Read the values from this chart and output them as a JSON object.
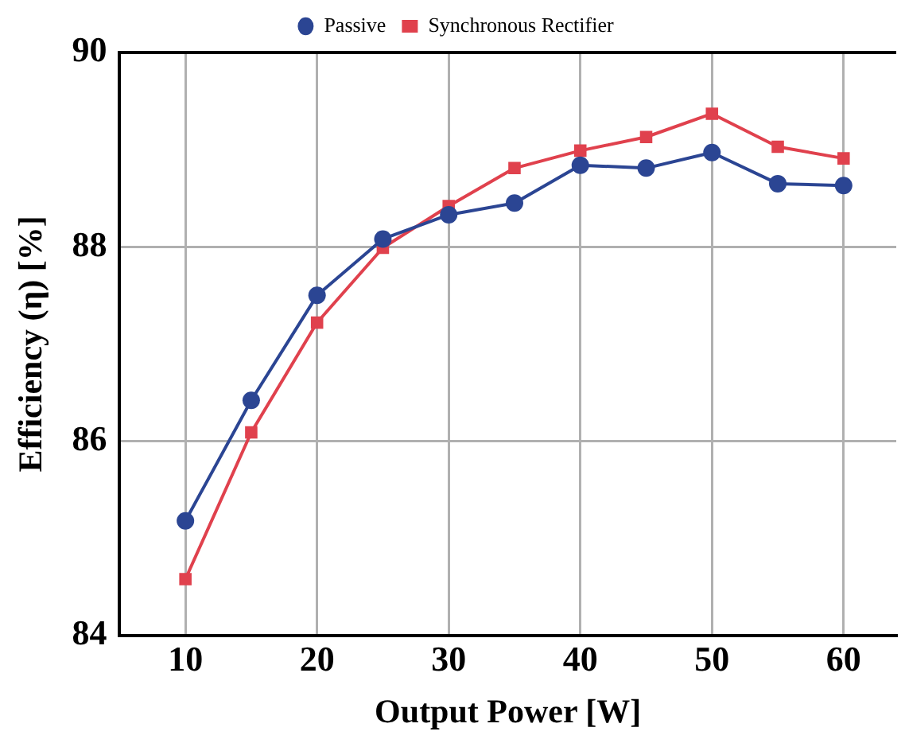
{
  "chart_data": {
    "type": "line",
    "xlabel": "Output Power [W]",
    "ylabel": "Efficiency (η) [%]",
    "xlim": [
      5,
      64
    ],
    "xticks": [
      10,
      20,
      30,
      40,
      50,
      60
    ],
    "ylim": [
      84,
      90
    ],
    "yticks": [
      84,
      86,
      88,
      90
    ],
    "grid": true,
    "legend": "top",
    "line_style": "solid",
    "series": [
      {
        "name": "Passive",
        "color": "#2b4593",
        "marker": "circle",
        "x": [
          10,
          15,
          20,
          25,
          30,
          35,
          40,
          45,
          50,
          55,
          60
        ],
        "values": [
          85.18,
          86.42,
          87.5,
          88.08,
          88.33,
          88.45,
          88.84,
          88.81,
          88.97,
          88.65,
          88.63
        ]
      },
      {
        "name": "Synchronous Rectifier",
        "color": "#e0414d",
        "marker": "square",
        "x": [
          10,
          15,
          20,
          25,
          30,
          35,
          40,
          45,
          50,
          55,
          60
        ],
        "values": [
          84.58,
          86.09,
          87.22,
          87.99,
          88.42,
          88.81,
          88.99,
          89.13,
          89.37,
          89.03,
          88.91
        ]
      }
    ]
  }
}
